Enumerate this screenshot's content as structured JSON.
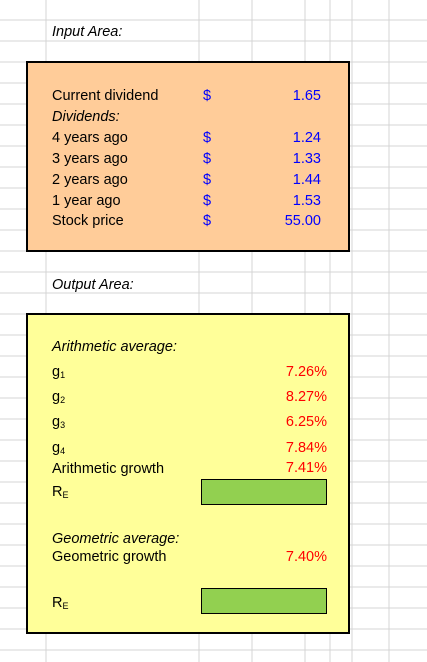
{
  "input": {
    "heading": "Input Area:",
    "rows": [
      {
        "label": "Current dividend",
        "dollar": "$",
        "value": "1.65"
      },
      {
        "label": "Dividends:",
        "dollar": "",
        "value": ""
      },
      {
        "label": "4 years ago",
        "dollar": "$",
        "value": "1.24"
      },
      {
        "label": "3 years ago",
        "dollar": "$",
        "value": "1.33"
      },
      {
        "label": "2 years ago",
        "dollar": "$",
        "value": "1.44"
      },
      {
        "label": "1 year ago",
        "dollar": "$",
        "value": "1.53"
      },
      {
        "label": "Stock price",
        "dollar": "$",
        "value": "55.00"
      }
    ]
  },
  "output": {
    "heading": "Output Area:",
    "arith_heading": "Arithmetic average:",
    "g_rows": [
      {
        "base": "g",
        "sub": "1",
        "value": "7.26%"
      },
      {
        "base": "g",
        "sub": "2",
        "value": "8.27%"
      },
      {
        "base": "g",
        "sub": "3",
        "value": "6.25%"
      },
      {
        "base": "g",
        "sub": "4",
        "value": "7.84%"
      }
    ],
    "arith_growth_label": "Arithmetic growth",
    "arith_growth_value": "7.41%",
    "re_base": "R",
    "re_sub": "E",
    "geo_heading": "Geometric average:",
    "geo_growth_label": "Geometric growth",
    "geo_growth_value": "7.40%"
  },
  "colors": {
    "input_fill": "#FFCC99",
    "output_fill": "#FFFF99",
    "answer_cell": "#92D050",
    "value_blue": "#0000FF",
    "value_red": "#FF0000",
    "gridline": "#D4D4D4"
  }
}
